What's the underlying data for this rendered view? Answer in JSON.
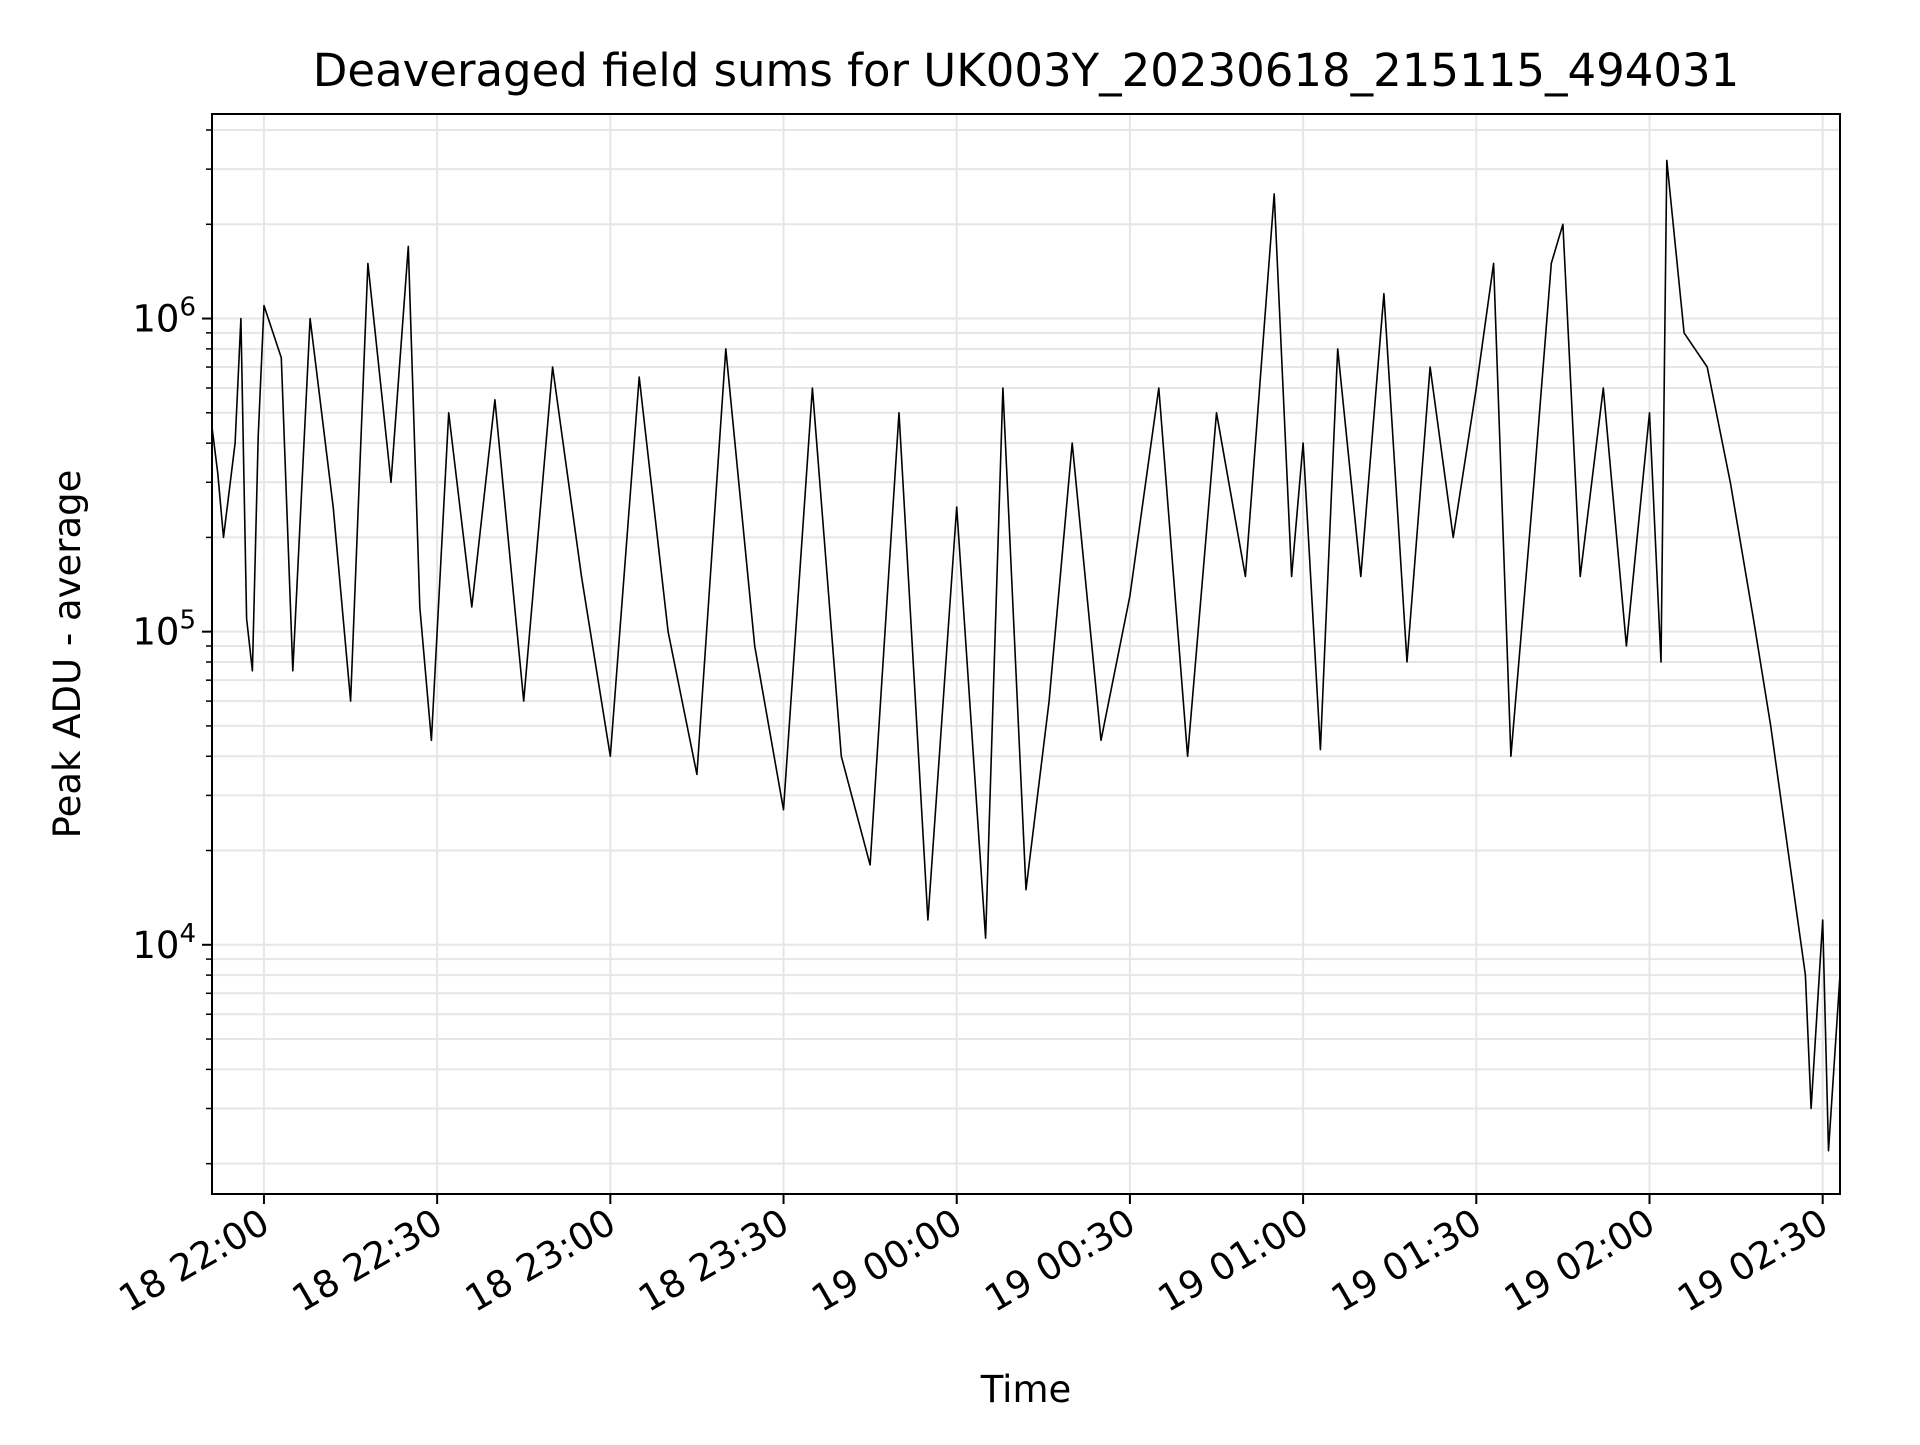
{
  "chart_data": {
    "type": "line",
    "title": "Deaveraged field sums for UK003Y_20230618_215115_494031",
    "xlabel": "Time",
    "ylabel": "Peak ADU - average",
    "yscale": "log",
    "ylim": [
      1600,
      4500000
    ],
    "xlim": [
      "2023-06-18 21:51",
      "2023-06-19 02:33"
    ],
    "grid": true,
    "line_color": "#000000",
    "grid_color": "#e6e6e6",
    "x_ticks": [
      {
        "value": "2023-06-18 22:00",
        "label": "18 22:00"
      },
      {
        "value": "2023-06-18 22:30",
        "label": "18 22:30"
      },
      {
        "value": "2023-06-18 23:00",
        "label": "18 23:00"
      },
      {
        "value": "2023-06-18 23:30",
        "label": "18 23:30"
      },
      {
        "value": "2023-06-19 00:00",
        "label": "19 00:00"
      },
      {
        "value": "2023-06-19 00:30",
        "label": "19 00:30"
      },
      {
        "value": "2023-06-19 01:00",
        "label": "19 01:00"
      },
      {
        "value": "2023-06-19 01:30",
        "label": "19 01:30"
      },
      {
        "value": "2023-06-19 02:00",
        "label": "19 02:00"
      },
      {
        "value": "2023-06-19 02:30",
        "label": "19 02:30"
      }
    ],
    "y_ticks": [
      {
        "value": 10000,
        "base": "10",
        "exp": "4"
      },
      {
        "value": 100000,
        "base": "10",
        "exp": "5"
      },
      {
        "value": 1000000,
        "base": "10",
        "exp": "6"
      }
    ],
    "series": [
      {
        "points": [
          [
            "2023-06-18 21:51",
            450000
          ],
          [
            "2023-06-18 21:52",
            320000
          ],
          [
            "2023-06-18 21:53",
            200000
          ],
          [
            "2023-06-18 21:55",
            400000
          ],
          [
            "2023-06-18 21:56",
            1000000
          ],
          [
            "2023-06-18 21:57",
            110000
          ],
          [
            "2023-06-18 21:58",
            75000
          ],
          [
            "2023-06-18 21:59",
            420000
          ],
          [
            "2023-06-18 22:00",
            1100000
          ],
          [
            "2023-06-18 22:03",
            750000
          ],
          [
            "2023-06-18 22:05",
            75000
          ],
          [
            "2023-06-18 22:08",
            1000000
          ],
          [
            "2023-06-18 22:12",
            250000
          ],
          [
            "2023-06-18 22:15",
            60000
          ],
          [
            "2023-06-18 22:18",
            1500000
          ],
          [
            "2023-06-18 22:22",
            300000
          ],
          [
            "2023-06-18 22:25",
            1700000
          ],
          [
            "2023-06-18 22:27",
            120000
          ],
          [
            "2023-06-18 22:29",
            45000
          ],
          [
            "2023-06-18 22:32",
            500000
          ],
          [
            "2023-06-18 22:36",
            120000
          ],
          [
            "2023-06-18 22:40",
            550000
          ],
          [
            "2023-06-18 22:45",
            60000
          ],
          [
            "2023-06-18 22:50",
            700000
          ],
          [
            "2023-06-18 22:55",
            150000
          ],
          [
            "2023-06-18 23:00",
            40000
          ],
          [
            "2023-06-18 23:05",
            650000
          ],
          [
            "2023-06-18 23:10",
            100000
          ],
          [
            "2023-06-18 23:15",
            35000
          ],
          [
            "2023-06-18 23:20",
            800000
          ],
          [
            "2023-06-18 23:25",
            90000
          ],
          [
            "2023-06-18 23:30",
            27000
          ],
          [
            "2023-06-18 23:35",
            600000
          ],
          [
            "2023-06-18 23:40",
            40000
          ],
          [
            "2023-06-18 23:45",
            18000
          ],
          [
            "2023-06-18 23:50",
            500000
          ],
          [
            "2023-06-18 23:55",
            12000
          ],
          [
            "2023-06-19 00:00",
            250000
          ],
          [
            "2023-06-19 00:05",
            10500
          ],
          [
            "2023-06-19 00:08",
            600000
          ],
          [
            "2023-06-19 00:12",
            15000
          ],
          [
            "2023-06-19 00:16",
            60000
          ],
          [
            "2023-06-19 00:20",
            400000
          ],
          [
            "2023-06-19 00:25",
            45000
          ],
          [
            "2023-06-19 00:30",
            130000
          ],
          [
            "2023-06-19 00:35",
            600000
          ],
          [
            "2023-06-19 00:40",
            40000
          ],
          [
            "2023-06-19 00:45",
            500000
          ],
          [
            "2023-06-19 00:50",
            150000
          ],
          [
            "2023-06-19 00:55",
            2500000
          ],
          [
            "2023-06-19 00:58",
            150000
          ],
          [
            "2023-06-19 01:00",
            400000
          ],
          [
            "2023-06-19 01:03",
            42000
          ],
          [
            "2023-06-19 01:06",
            800000
          ],
          [
            "2023-06-19 01:10",
            150000
          ],
          [
            "2023-06-19 01:14",
            1200000
          ],
          [
            "2023-06-19 01:18",
            80000
          ],
          [
            "2023-06-19 01:22",
            700000
          ],
          [
            "2023-06-19 01:26",
            200000
          ],
          [
            "2023-06-19 01:30",
            600000
          ],
          [
            "2023-06-19 01:33",
            1500000
          ],
          [
            "2023-06-19 01:36",
            40000
          ],
          [
            "2023-06-19 01:40",
            300000
          ],
          [
            "2023-06-19 01:43",
            1500000
          ],
          [
            "2023-06-19 01:45",
            2000000
          ],
          [
            "2023-06-19 01:48",
            150000
          ],
          [
            "2023-06-19 01:52",
            600000
          ],
          [
            "2023-06-19 01:56",
            90000
          ],
          [
            "2023-06-19 02:00",
            500000
          ],
          [
            "2023-06-19 02:02",
            80000
          ],
          [
            "2023-06-19 02:03",
            3200000
          ],
          [
            "2023-06-19 02:06",
            900000
          ],
          [
            "2023-06-19 02:10",
            700000
          ],
          [
            "2023-06-19 02:14",
            300000
          ],
          [
            "2023-06-19 02:18",
            110000
          ],
          [
            "2023-06-19 02:21",
            50000
          ],
          [
            "2023-06-19 02:24",
            20000
          ],
          [
            "2023-06-19 02:27",
            8000
          ],
          [
            "2023-06-19 02:28",
            3000
          ],
          [
            "2023-06-19 02:30",
            12000
          ],
          [
            "2023-06-19 02:31",
            2200
          ],
          [
            "2023-06-19 02:33",
            8000
          ]
        ]
      }
    ]
  }
}
